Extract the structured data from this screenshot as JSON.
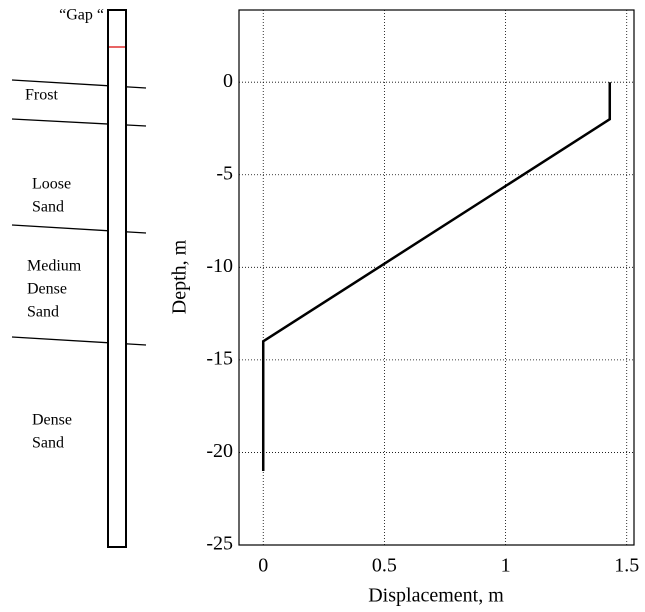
{
  "chart_data": {
    "type": "line",
    "xlabel": "Displacement, m",
    "ylabel": "Depth, m",
    "x": [
      1.43,
      1.43,
      0,
      0
    ],
    "values": [
      0,
      -2,
      -14,
      -21
    ],
    "color": "#000000",
    "xlim": [
      -0.1,
      1.53
    ],
    "ylim": [
      -25,
      3.9
    ],
    "xticks": [
      0,
      0.5,
      1,
      1.5
    ],
    "yticks": [
      0,
      -5,
      -10,
      -15,
      -20,
      -25
    ],
    "grid": true
  },
  "soil_profile": {
    "gap_label": "“Gap “",
    "layers": [
      {
        "lines": [
          "Frost"
        ]
      },
      {
        "lines": [
          "Loose",
          "Sand"
        ]
      },
      {
        "lines": [
          "Medium",
          "Dense",
          "Sand"
        ]
      },
      {
        "lines": [
          "Dense",
          "Sand"
        ]
      }
    ]
  }
}
